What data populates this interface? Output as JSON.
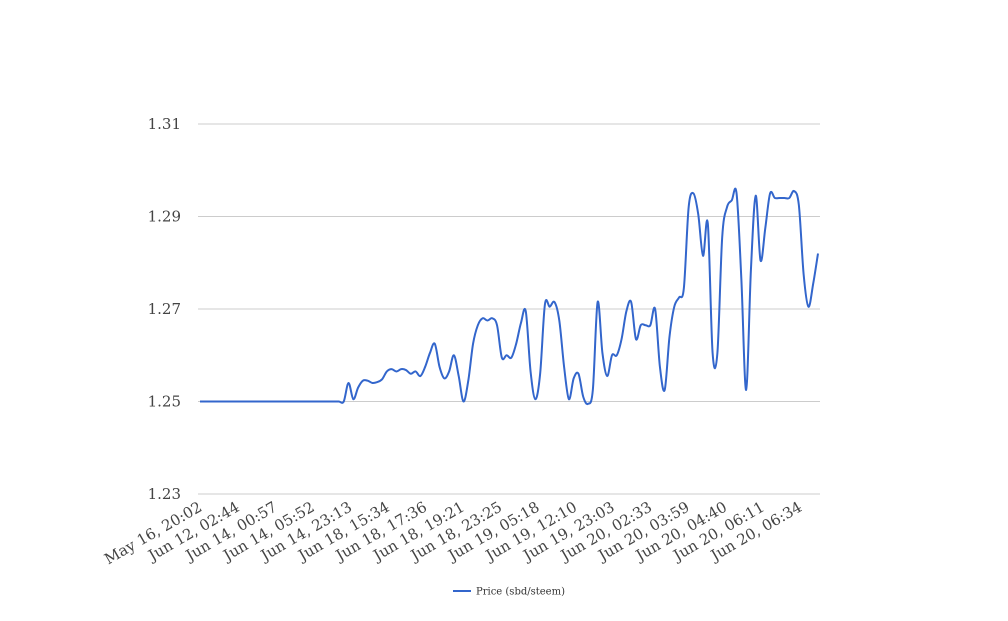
{
  "chart_data": {
    "type": "line",
    "title": "",
    "xlabel": "",
    "ylabel": "",
    "ylim": [
      1.23,
      1.31
    ],
    "y_ticks": [
      "1.31",
      "1.29",
      "1.27",
      "1.25",
      "1.23"
    ],
    "y_tick_values": [
      1.31,
      1.29,
      1.27,
      1.25,
      1.23
    ],
    "x_tick_labels": [
      "May 16, 20:02",
      "Jun 12, 02:44",
      "Jun 14, 00:57",
      "Jun 14, 05:52",
      "Jun 14, 23:13",
      "Jun 18, 15:34",
      "Jun 18, 17:36",
      "Jun 18, 19:21",
      "Jun 18, 23:25",
      "Jun 19, 05:18",
      "Jun 19, 12:10",
      "Jun 19, 23:03",
      "Jun 20, 02:33",
      "Jun 20, 03:59",
      "Jun 20, 04:40",
      "Jun 20, 06:11",
      "Jun 20, 06:34"
    ],
    "grid": true,
    "legend_position": "bottom",
    "series": [
      {
        "name": "Price (sbd/steem)",
        "color": "#3366cc",
        "values": [
          1.25,
          1.25,
          1.25,
          1.25,
          1.25,
          1.25,
          1.25,
          1.25,
          1.25,
          1.25,
          1.25,
          1.25,
          1.25,
          1.25,
          1.25,
          1.25,
          1.25,
          1.25,
          1.25,
          1.25,
          1.25,
          1.25,
          1.25,
          1.25,
          1.25,
          1.25,
          1.25,
          1.25,
          1.25,
          1.25,
          1.25,
          1.254,
          1.2505,
          1.253,
          1.2545,
          1.2545,
          1.254,
          1.2542,
          1.2548,
          1.2565,
          1.257,
          1.2565,
          1.257,
          1.2568,
          1.256,
          1.2565,
          1.2555,
          1.2575,
          1.2605,
          1.2625,
          1.2575,
          1.255,
          1.2565,
          1.26,
          1.2555,
          1.25,
          1.2545,
          1.2625,
          1.2665,
          1.268,
          1.2675,
          1.268,
          1.2665,
          1.2595,
          1.26,
          1.2595,
          1.2625,
          1.267,
          1.2695,
          1.2565,
          1.2505,
          1.256,
          1.271,
          1.2705,
          1.2715,
          1.2675,
          1.2575,
          1.2505,
          1.255,
          1.256,
          1.251,
          1.2495,
          1.2525,
          1.2715,
          1.2605,
          1.2555,
          1.26,
          1.26,
          1.2635,
          1.2695,
          1.2715,
          1.2635,
          1.2665,
          1.2665,
          1.2665,
          1.27,
          1.2575,
          1.2525,
          1.264,
          1.2705,
          1.2725,
          1.2745,
          1.292,
          1.295,
          1.2905,
          1.2815,
          1.2885,
          1.2605,
          1.2605,
          1.2855,
          1.292,
          1.2935,
          1.295,
          1.2765,
          1.2525,
          1.2785,
          1.2945,
          1.2805,
          1.2875,
          1.295,
          1.294,
          1.294,
          1.294,
          1.294,
          1.2955,
          1.2925,
          1.2775,
          1.2705,
          1.2755,
          1.282
        ]
      }
    ]
  }
}
